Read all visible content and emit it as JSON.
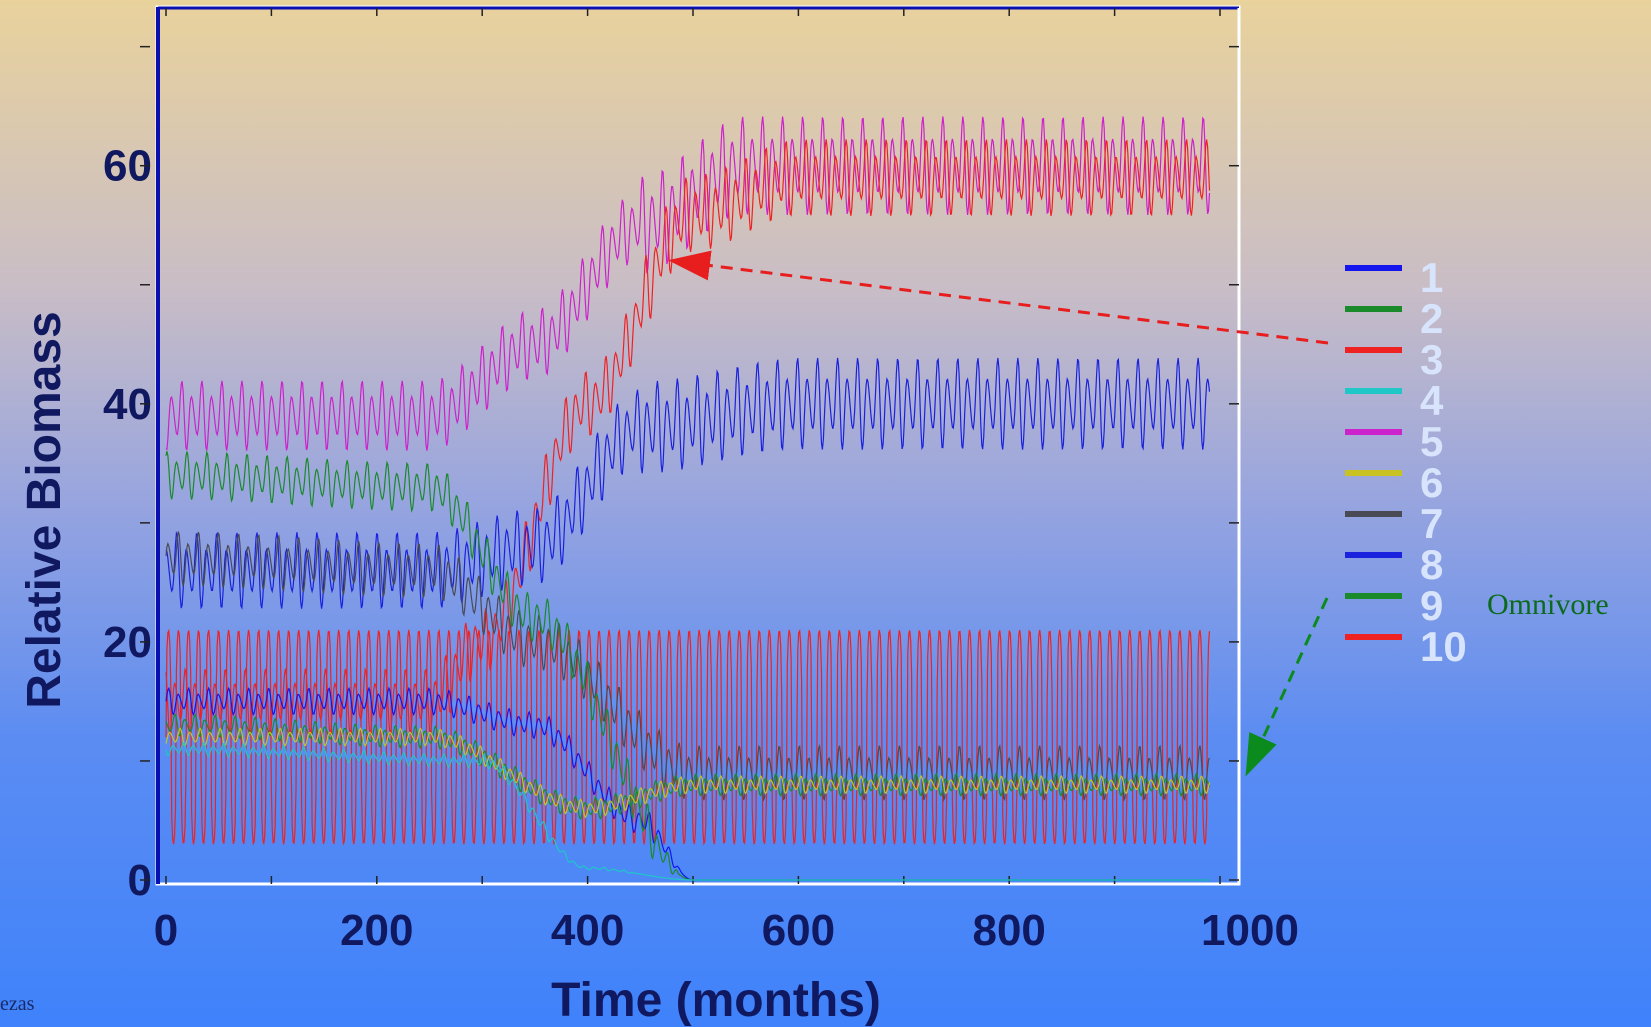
{
  "chart_data": {
    "type": "line",
    "title": "",
    "xlabel": "Time (months)",
    "ylabel": "Relative Biomass",
    "xlim": [
      0,
      1000
    ],
    "ylim": [
      0,
      70
    ],
    "x_ticks": [
      0,
      200,
      400,
      600,
      800,
      1000
    ],
    "y_ticks": [
      0,
      20,
      40,
      60
    ],
    "grid": false,
    "legend_placement": "right",
    "series": [
      {
        "name": "1",
        "color": "#1515ee",
        "description_values": {
          "x": [
            0,
            250,
            350,
            450,
            500,
            1000
          ],
          "y": [
            15,
            15,
            13,
            5,
            0,
            0
          ]
        }
      },
      {
        "name": "2",
        "color": "#1a8a2a",
        "description_values": {
          "x": [
            0,
            250,
            350,
            500,
            1000
          ],
          "y": [
            34,
            33,
            22,
            0,
            0
          ]
        }
      },
      {
        "name": "3",
        "color": "#ee2222",
        "description_values": {
          "x": [
            0,
            250,
            300,
            400,
            500,
            600,
            1000
          ],
          "y": [
            15,
            15,
            20,
            40,
            56,
            59,
            59
          ]
        }
      },
      {
        "name": "4",
        "color": "#1fc7c7",
        "description_values": {
          "x": [
            0,
            300,
            400,
            500,
            1000
          ],
          "y": [
            11,
            10,
            1,
            0,
            0
          ]
        }
      },
      {
        "name": "5",
        "color": "#cc22cc",
        "description_values": {
          "x": [
            0,
            250,
            350,
            450,
            550,
            1000
          ],
          "y": [
            39,
            39,
            45,
            55,
            60,
            60
          ]
        }
      },
      {
        "name": "6",
        "color": "#c8c222",
        "description_values": {
          "x": [
            0,
            250,
            400,
            500,
            1000
          ],
          "y": [
            12,
            12,
            6,
            8,
            8
          ]
        }
      },
      {
        "name": "7",
        "color": "#4a4a55",
        "description_values": {
          "x": [
            0,
            250,
            350,
            500,
            1000
          ],
          "y": [
            27,
            26,
            20,
            9,
            9
          ]
        }
      },
      {
        "name": "8",
        "color": "#1a22dd",
        "description_values": {
          "x": [
            0,
            250,
            350,
            450,
            600,
            1000
          ],
          "y": [
            26,
            26,
            28,
            38,
            40,
            40
          ]
        }
      },
      {
        "name": "9",
        "color": "#1a8a2a",
        "description_values": {
          "x": [
            0,
            250,
            400,
            500,
            1000
          ],
          "y": [
            13,
            12,
            6,
            8,
            8
          ]
        }
      },
      {
        "name": "10",
        "color": "#ee2222",
        "description_values": {
          "x": [
            0,
            1000
          ],
          "y": [
            12,
            12
          ]
        }
      }
    ],
    "annotations": [
      {
        "text": "Omnivore",
        "color": "#0b6b1d"
      }
    ]
  },
  "watermark_text": "ezas"
}
